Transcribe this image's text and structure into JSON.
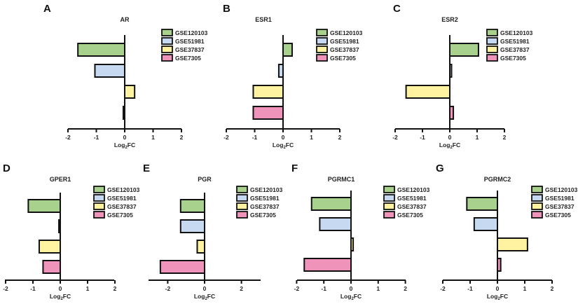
{
  "colors": {
    "GSE120103": "#a9d18e",
    "GSE51981": "#c6d9f0",
    "GSE37837": "#fff2a1",
    "GSE7305": "#ef93ba",
    "outline": "#111111"
  },
  "chart_data": [
    {
      "type": "bar",
      "orientation": "horizontal",
      "panel": "A",
      "title": "AR",
      "xlabel": "Log₂FC",
      "xlabel_parts": {
        "main": "Log",
        "sub": "2",
        "rest": "FC"
      },
      "xlim": [
        -2,
        2
      ],
      "xticks": [
        "-2",
        "-1",
        "0",
        "1",
        "2"
      ],
      "xtick_values": [
        -2,
        -1,
        0,
        1,
        2
      ],
      "legend_position": "top-right",
      "series": [
        {
          "name": "GSE120103",
          "value": -1.65
        },
        {
          "name": "GSE51981",
          "value": -1.05
        },
        {
          "name": "GSE37837",
          "value": 0.35
        },
        {
          "name": "GSE7305",
          "value": -0.05
        }
      ]
    },
    {
      "type": "bar",
      "orientation": "horizontal",
      "panel": "B",
      "title": "ESR1",
      "xlabel": "Log₂FC",
      "xlabel_parts": {
        "main": "Log",
        "sub": "2",
        "rest": "FC"
      },
      "xlim": [
        -2,
        2
      ],
      "xticks": [
        "-2",
        "-1",
        "0",
        "1",
        "2"
      ],
      "xtick_values": [
        -2,
        -1,
        0,
        1,
        2
      ],
      "legend_position": "top-right",
      "series": [
        {
          "name": "GSE120103",
          "value": 0.32
        },
        {
          "name": "GSE51981",
          "value": -0.15
        },
        {
          "name": "GSE37837",
          "value": -1.05
        },
        {
          "name": "GSE7305",
          "value": -1.05
        }
      ]
    },
    {
      "type": "bar",
      "orientation": "horizontal",
      "panel": "C",
      "title": "ESR2",
      "xlabel": "Log₂FC",
      "xlabel_parts": {
        "main": "Log",
        "sub": "2",
        "rest": "FC"
      },
      "xlim": [
        -2,
        2
      ],
      "xticks": [
        "-2",
        "-1",
        "0",
        "1",
        "2"
      ],
      "xtick_values": [
        -2,
        -1,
        0,
        1,
        2
      ],
      "legend_position": "top-right",
      "series": [
        {
          "name": "GSE120103",
          "value": 1.05
        },
        {
          "name": "GSE51981",
          "value": 0.02
        },
        {
          "name": "GSE37837",
          "value": -1.6
        },
        {
          "name": "GSE7305",
          "value": 0.13
        }
      ]
    },
    {
      "type": "bar",
      "orientation": "horizontal",
      "panel": "D",
      "title": "GPER1",
      "xlabel": "Log₂FC",
      "xlabel_parts": {
        "main": "Log",
        "sub": "2",
        "rest": "FC"
      },
      "xlim": [
        -2,
        2
      ],
      "xticks": [
        "-2",
        "-1",
        "0",
        "1",
        "2"
      ],
      "xtick_values": [
        -2,
        -1,
        0,
        1,
        2
      ],
      "legend_position": "top-right",
      "series": [
        {
          "name": "GSE120103",
          "value": -1.17
        },
        {
          "name": "GSE51981",
          "value": -0.05
        },
        {
          "name": "GSE37837",
          "value": -0.77
        },
        {
          "name": "GSE7305",
          "value": -0.63
        }
      ]
    },
    {
      "type": "bar",
      "orientation": "horizontal",
      "panel": "E",
      "title": "PGR",
      "xlabel": "Log₂FC",
      "xlabel_parts": {
        "main": "Log",
        "sub": "2",
        "rest": "FC"
      },
      "xlim": [
        -3,
        3
      ],
      "xticks": [
        "-2",
        "0",
        "2"
      ],
      "xtick_values": [
        -2,
        0,
        2
      ],
      "legend_position": "top-right",
      "series": [
        {
          "name": "GSE120103",
          "value": -1.3
        },
        {
          "name": "GSE51981",
          "value": -1.3
        },
        {
          "name": "GSE37837",
          "value": -0.4
        },
        {
          "name": "GSE7305",
          "value": -2.4
        }
      ]
    },
    {
      "type": "bar",
      "orientation": "horizontal",
      "panel": "F",
      "title": "PGRMC1",
      "xlabel": "Log₂FC",
      "xlabel_parts": {
        "main": "Log",
        "sub": "2",
        "rest": "FC"
      },
      "xlim": [
        -2,
        2
      ],
      "xticks": [
        "-2",
        "-1",
        "0",
        "1",
        "2"
      ],
      "xtick_values": [
        -2,
        -1,
        0,
        1,
        2
      ],
      "legend_position": "top-right",
      "series": [
        {
          "name": "GSE120103",
          "value": -1.45
        },
        {
          "name": "GSE51981",
          "value": -1.15
        },
        {
          "name": "GSE37837",
          "value": 0.08
        },
        {
          "name": "GSE7305",
          "value": -1.72
        }
      ]
    },
    {
      "type": "bar",
      "orientation": "horizontal",
      "panel": "G",
      "title": "PGRMC2",
      "xlabel": "Log₂FC",
      "xlabel_parts": {
        "main": "Log",
        "sub": "2",
        "rest": "FC"
      },
      "xlim": [
        -2,
        2
      ],
      "xticks": [
        "-2",
        "-1",
        "0",
        "1",
        "2"
      ],
      "xtick_values": [
        -2,
        -1,
        0,
        1,
        2
      ],
      "legend_position": "top-right",
      "series": [
        {
          "name": "GSE120103",
          "value": -1.12
        },
        {
          "name": "GSE51981",
          "value": -0.85
        },
        {
          "name": "GSE37837",
          "value": 1.1
        },
        {
          "name": "GSE7305",
          "value": 0.12
        }
      ]
    }
  ]
}
